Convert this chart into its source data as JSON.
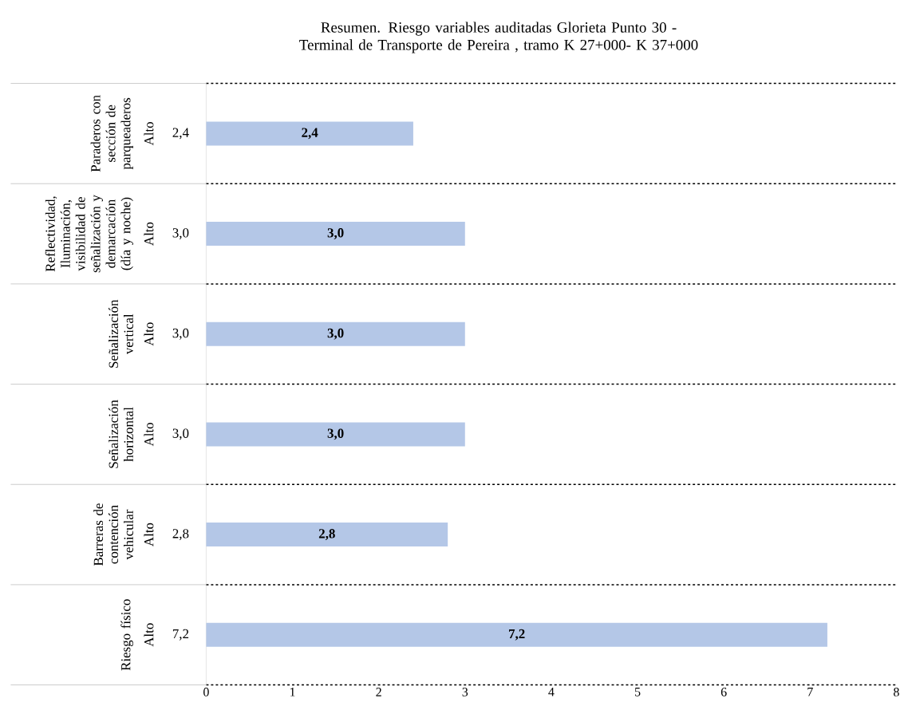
{
  "chart_data": {
    "type": "bar",
    "orientation": "horizontal",
    "title": "Resumen. Riesgo variables  auditadas Glorieta Punto 30 - Terminal de Transporte de Pereira , tramo K 27+000- K 37+000",
    "categories": [
      "Paraderos con sección de parqueaderos",
      "Reflectividad, Iluminación, visibilidad de señalización y demarcación (día y noche)",
      "Señalización vertical",
      "Señalización horizontal",
      "Barreras de contención vehicular",
      "Riesgo  físico"
    ],
    "values": [
      2.4,
      3.0,
      3.0,
      3.0,
      2.8,
      7.2
    ],
    "value_labels": [
      "2,4",
      "3,0",
      "3,0",
      "3,0",
      "2,8",
      "7,2"
    ],
    "annotations": [
      "Alto",
      "Alto",
      "Alto",
      "Alto",
      "Alto",
      "Alto"
    ],
    "color": "#b4c7e7",
    "xlim": [
      0,
      8
    ],
    "xticks": [
      0,
      1,
      2,
      3,
      4,
      5,
      6,
      7,
      8
    ],
    "grid": "y"
  }
}
